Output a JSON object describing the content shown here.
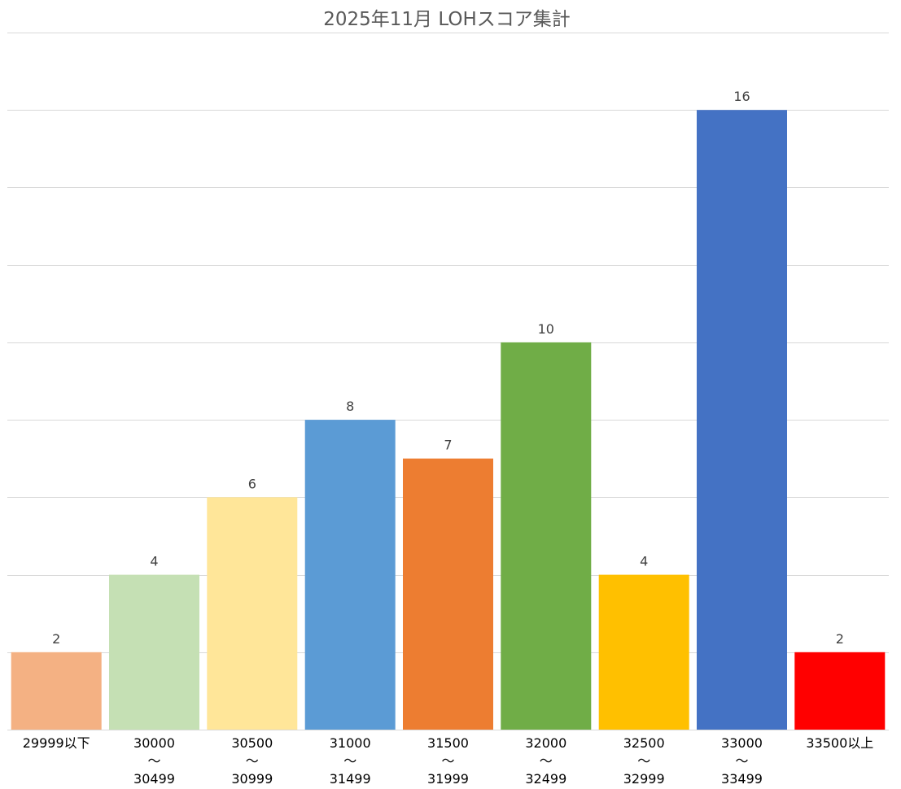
{
  "chart_data": {
    "type": "bar",
    "title": "2025年11月 LOHスコア集計",
    "xlabel": "",
    "ylabel": "",
    "ylim": [
      0,
      18
    ],
    "grid": true,
    "grid_step": 2,
    "legend": "none",
    "categories": [
      "29999以下",
      "30000〜30499",
      "30500〜30999",
      "31000〜31499",
      "31500〜31999",
      "32000〜32499",
      "32500〜32999",
      "33000〜33499",
      "33500以上"
    ],
    "category_lines": [
      [
        "29999以下"
      ],
      [
        "30000",
        "〜",
        "30499"
      ],
      [
        "30500",
        "〜",
        "30999"
      ],
      [
        "31000",
        "〜",
        "31499"
      ],
      [
        "31500",
        "〜",
        "31999"
      ],
      [
        "32000",
        "〜",
        "32499"
      ],
      [
        "32500",
        "〜",
        "32999"
      ],
      [
        "33000",
        "〜",
        "33499"
      ],
      [
        "33500以上"
      ]
    ],
    "values": [
      2,
      4,
      6,
      8,
      7,
      10,
      4,
      16,
      2
    ],
    "data_labels": [
      "2",
      "4",
      "6",
      "8",
      "7",
      "10",
      "4",
      "16",
      "2"
    ],
    "colors": [
      "#F4B183",
      "#C5E0B4",
      "#FFE699",
      "#5B9BD5",
      "#ED7D31",
      "#70AD47",
      "#FFC000",
      "#4472C4",
      "#FF0000"
    ]
  }
}
